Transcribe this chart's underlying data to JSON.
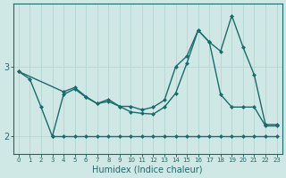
{
  "xlabel": "Humidex (Indice chaleur)",
  "ylabel": "",
  "bg_color": "#cfe8e5",
  "grid_color": "#b8d8d4",
  "line_color": "#1a6b6b",
  "xlim": [
    -0.5,
    23.5
  ],
  "ylim": [
    1.75,
    3.9
  ],
  "yticks": [
    2,
    3
  ],
  "xticks": [
    0,
    1,
    2,
    3,
    4,
    5,
    6,
    7,
    8,
    9,
    10,
    11,
    12,
    13,
    14,
    15,
    16,
    17,
    18,
    19,
    20,
    21,
    22,
    23
  ],
  "line1_x": [
    3,
    4,
    5,
    6,
    7,
    8,
    9,
    10,
    11,
    12,
    13,
    14,
    15,
    16,
    17,
    18,
    19,
    20,
    21,
    22,
    23
  ],
  "line1_y": [
    2.0,
    2.0,
    2.0,
    2.0,
    2.0,
    2.0,
    2.0,
    2.0,
    2.0,
    2.0,
    2.0,
    2.0,
    2.0,
    2.0,
    2.0,
    2.0,
    2.0,
    2.0,
    2.0,
    2.0,
    2.0
  ],
  "line2_x": [
    0,
    1,
    2,
    3,
    4,
    5,
    6,
    7,
    8,
    9,
    10,
    11,
    12,
    13,
    14,
    15,
    16,
    17,
    18,
    19,
    20,
    21,
    22,
    23
  ],
  "line2_y": [
    2.93,
    2.82,
    2.42,
    2.0,
    2.6,
    2.68,
    2.56,
    2.47,
    2.53,
    2.43,
    2.35,
    2.33,
    2.32,
    2.42,
    2.62,
    3.05,
    3.52,
    3.35,
    2.6,
    2.42,
    2.42,
    2.42,
    2.15,
    2.15
  ],
  "line3_x": [
    0,
    4,
    5,
    6,
    7,
    8,
    9,
    10,
    11,
    12,
    13,
    14,
    15,
    16,
    17,
    18,
    19,
    20,
    21,
    22,
    23
  ],
  "line3_y": [
    2.93,
    2.64,
    2.7,
    2.57,
    2.47,
    2.5,
    2.43,
    2.43,
    2.38,
    2.42,
    2.52,
    3.0,
    3.15,
    3.52,
    3.35,
    3.22,
    3.73,
    3.28,
    2.88,
    2.17,
    2.17
  ],
  "marker": "D",
  "markersize": 2.5,
  "linewidth": 1.0
}
